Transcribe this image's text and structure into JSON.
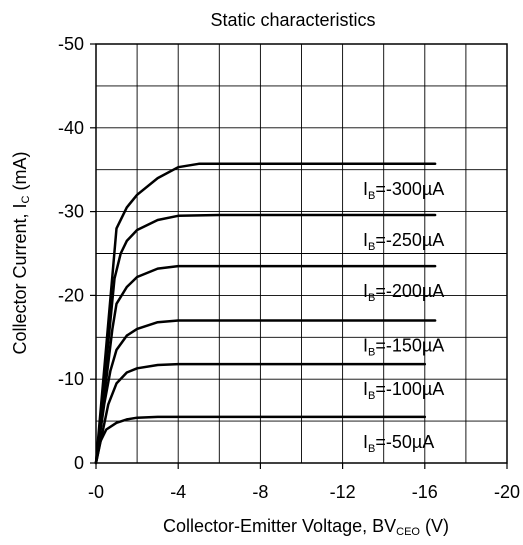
{
  "chart_data": {
    "type": "line",
    "title": "Static characteristics",
    "xlabel": "Collector-Emitter Voltage, BV",
    "xlabel_sub": "CEO",
    "xlabel_unit": " (V)",
    "ylabel": "Collector Current, I",
    "ylabel_sub": "C",
    "ylabel_unit": " (mA)",
    "xlim": [
      0,
      -20
    ],
    "ylim": [
      0,
      -50
    ],
    "x_ticks": [
      0,
      -4,
      -8,
      -12,
      -16,
      -20
    ],
    "x_tick_labels": [
      "-0",
      "-4",
      "-8",
      "-12",
      "-16",
      "-20"
    ],
    "y_ticks": [
      0,
      -10,
      -20,
      -30,
      -40,
      -50
    ],
    "y_tick_labels": [
      "0",
      "-10",
      "-20",
      "-30",
      "-40",
      "-50"
    ],
    "grid": true,
    "series": [
      {
        "name": "I_B=-50µA",
        "label_prefix": "I",
        "label_sub": "B",
        "label_value": "=-50µA",
        "x": [
          0,
          -0.2,
          -0.5,
          -1,
          -1.5,
          -2,
          -3,
          -4,
          -6,
          -10,
          -16
        ],
        "y": [
          0,
          -2.5,
          -4.0,
          -4.8,
          -5.2,
          -5.4,
          -5.5,
          -5.5,
          -5.5,
          -5.5,
          -5.5
        ]
      },
      {
        "name": "I_B=-100µA",
        "label_prefix": "I",
        "label_sub": "B",
        "label_value": "=-100µA",
        "x": [
          0,
          -0.3,
          -0.6,
          -1,
          -1.5,
          -2,
          -3,
          -4,
          -6,
          -10,
          -16
        ],
        "y": [
          0,
          -3.5,
          -7.0,
          -9.5,
          -10.8,
          -11.3,
          -11.7,
          -11.8,
          -11.8,
          -11.8,
          -11.8
        ]
      },
      {
        "name": "I_B=-150µA",
        "label_prefix": "I",
        "label_sub": "B",
        "label_value": "=-150µA",
        "x": [
          0,
          -0.4,
          -0.7,
          -1,
          -1.5,
          -2,
          -3,
          -4,
          -6,
          -10,
          -16.5
        ],
        "y": [
          0,
          -7.0,
          -11.0,
          -13.5,
          -15.2,
          -16.0,
          -16.8,
          -17.0,
          -17.0,
          -17.0,
          -17.0
        ]
      },
      {
        "name": "I_B=-200µA",
        "label_prefix": "I",
        "label_sub": "B",
        "label_value": "=-200µA",
        "x": [
          0,
          -0.5,
          -0.8,
          -1,
          -1.5,
          -2,
          -3,
          -4,
          -6,
          -10,
          -16.5
        ],
        "y": [
          0,
          -10.0,
          -16.0,
          -19.0,
          -21.0,
          -22.2,
          -23.2,
          -23.5,
          -23.5,
          -23.5,
          -23.5
        ]
      },
      {
        "name": "I_B=-250µA",
        "label_prefix": "I",
        "label_sub": "B",
        "label_value": "=-250µA",
        "x": [
          0,
          -0.5,
          -0.9,
          -1.2,
          -1.5,
          -2,
          -3,
          -4,
          -6,
          -10,
          -16.5
        ],
        "y": [
          0,
          -12.0,
          -22.0,
          -25.0,
          -26.5,
          -27.8,
          -29.0,
          -29.5,
          -29.6,
          -29.6,
          -29.6
        ]
      },
      {
        "name": "I_B=-300µA",
        "label_prefix": "I",
        "label_sub": "B",
        "label_value": "=-300µA",
        "x": [
          0,
          -0.5,
          -1,
          -1.5,
          -2,
          -3,
          -4,
          -5,
          -8,
          -12,
          -16.5
        ],
        "y": [
          0,
          -14.0,
          -28.0,
          -30.5,
          -32.0,
          -34.0,
          -35.3,
          -35.7,
          -35.7,
          -35.7,
          -35.7
        ]
      }
    ]
  }
}
